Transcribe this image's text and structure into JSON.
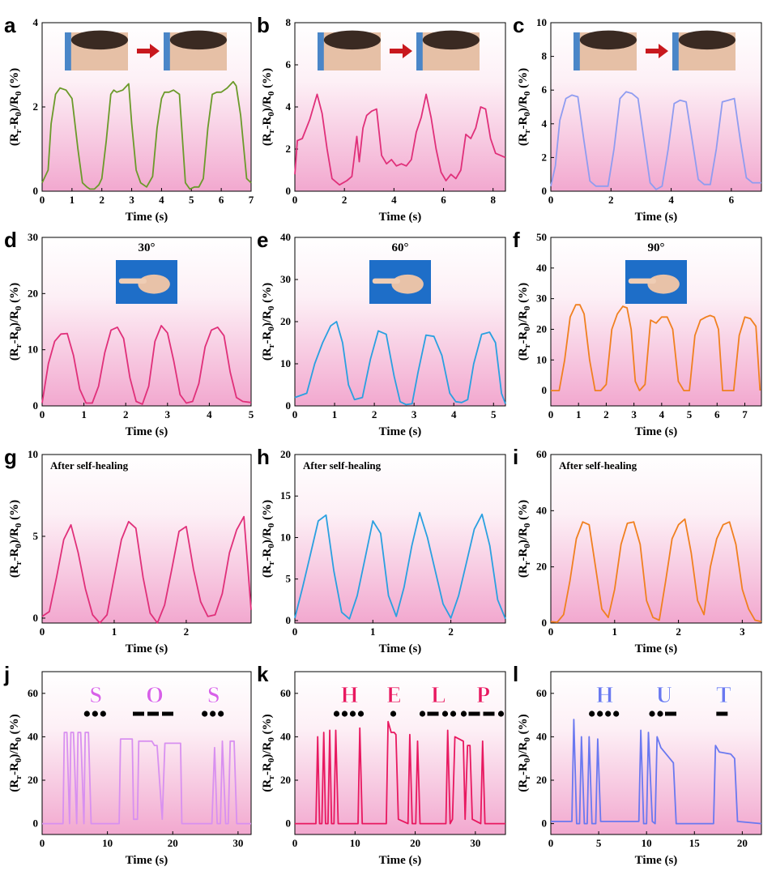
{
  "figure": {
    "ylabel": "(R_r-R_0)/R_0 (%)",
    "xlabel": "Time (s)"
  },
  "chart_data": [
    {
      "id": "a",
      "type": "line",
      "color": "#6b9a2a",
      "xlim": [
        0,
        7
      ],
      "ylim": [
        0,
        4
      ],
      "xticks": [
        0,
        1,
        2,
        3,
        4,
        5,
        6,
        7
      ],
      "yticks": [
        0,
        2,
        4
      ],
      "xlabel": "Time (s)",
      "ylabel": "(R_r-R_0)/R_0 (%)",
      "annotation": "",
      "photos": 2,
      "x": [
        0,
        0.2,
        0.3,
        0.45,
        0.6,
        0.8,
        1.0,
        1.2,
        1.35,
        1.5,
        1.6,
        1.75,
        1.9,
        2.0,
        2.15,
        2.3,
        2.4,
        2.5,
        2.7,
        2.9,
        3.0,
        3.15,
        3.3,
        3.5,
        3.7,
        3.85,
        4.0,
        4.1,
        4.25,
        4.4,
        4.6,
        4.8,
        4.95,
        5.1,
        5.25,
        5.4,
        5.55,
        5.7,
        5.85,
        6.0,
        6.2,
        6.4,
        6.5,
        6.65,
        6.85,
        7.0
      ],
      "y": [
        0.2,
        0.5,
        1.6,
        2.3,
        2.45,
        2.4,
        2.2,
        1.0,
        0.2,
        0.1,
        0.05,
        0.05,
        0.15,
        0.3,
        1.2,
        2.3,
        2.4,
        2.35,
        2.4,
        2.55,
        1.6,
        0.5,
        0.2,
        0.1,
        0.35,
        1.5,
        2.2,
        2.35,
        2.35,
        2.4,
        2.3,
        0.2,
        0.05,
        0.1,
        0.1,
        0.3,
        1.5,
        2.3,
        2.35,
        2.35,
        2.45,
        2.6,
        2.5,
        1.8,
        0.3,
        0.2
      ]
    },
    {
      "id": "b",
      "type": "line",
      "color": "#e0307a",
      "xlim": [
        0,
        8.5
      ],
      "ylim": [
        0,
        8
      ],
      "xticks": [
        0,
        2,
        4,
        6,
        8
      ],
      "yticks": [
        0,
        2,
        4,
        6,
        8
      ],
      "xlabel": "Time (s)",
      "ylabel": "(R_r-R_0)/R_0 (%)",
      "annotation": "",
      "photos": 2,
      "x": [
        0,
        0.1,
        0.3,
        0.6,
        0.9,
        1.1,
        1.3,
        1.5,
        1.8,
        2.1,
        2.3,
        2.5,
        2.6,
        2.75,
        2.9,
        3.1,
        3.3,
        3.5,
        3.7,
        3.9,
        4.1,
        4.3,
        4.5,
        4.7,
        4.9,
        5.1,
        5.3,
        5.5,
        5.7,
        5.9,
        6.1,
        6.3,
        6.5,
        6.7,
        6.9,
        7.1,
        7.3,
        7.5,
        7.7,
        7.9,
        8.1,
        8.3,
        8.5
      ],
      "y": [
        0.8,
        2.4,
        2.5,
        3.4,
        4.6,
        3.7,
        2.0,
        0.6,
        0.3,
        0.5,
        0.7,
        2.6,
        1.4,
        3.0,
        3.6,
        3.8,
        3.9,
        1.7,
        1.3,
        1.5,
        1.2,
        1.3,
        1.2,
        1.5,
        2.8,
        3.5,
        4.6,
        3.5,
        2.0,
        0.9,
        0.5,
        0.8,
        0.6,
        1.0,
        2.7,
        2.5,
        3.0,
        4.0,
        3.9,
        2.5,
        1.8,
        1.7,
        1.6
      ]
    },
    {
      "id": "c",
      "type": "line",
      "color": "#8f9cf0",
      "xlim": [
        0,
        7
      ],
      "ylim": [
        0,
        10
      ],
      "xticks": [
        0,
        2,
        4,
        6
      ],
      "yticks": [
        0,
        2,
        4,
        6,
        8,
        10
      ],
      "xlabel": "Time (s)",
      "ylabel": "(R_r-R_0)/R_0 (%)",
      "annotation": "",
      "photos": 2,
      "x": [
        0,
        0.15,
        0.3,
        0.5,
        0.7,
        0.9,
        1.1,
        1.3,
        1.5,
        1.7,
        1.9,
        2.1,
        2.3,
        2.5,
        2.7,
        2.9,
        3.1,
        3.3,
        3.5,
        3.7,
        3.9,
        4.1,
        4.3,
        4.5,
        4.7,
        4.9,
        5.1,
        5.3,
        5.5,
        5.7,
        5.9,
        6.1,
        6.3,
        6.5,
        6.7,
        7.0
      ],
      "y": [
        0.3,
        1.5,
        4.2,
        5.5,
        5.7,
        5.6,
        3.0,
        0.6,
        0.3,
        0.3,
        0.3,
        2.5,
        5.5,
        5.9,
        5.8,
        5.5,
        3.0,
        0.5,
        0.1,
        0.3,
        2.5,
        5.2,
        5.4,
        5.3,
        3.0,
        0.7,
        0.4,
        0.4,
        2.5,
        5.3,
        5.4,
        5.5,
        3.0,
        0.8,
        0.5,
        0.5
      ]
    },
    {
      "id": "d",
      "type": "line",
      "color": "#e0307a",
      "xlim": [
        0,
        5
      ],
      "ylim": [
        0,
        30
      ],
      "xticks": [
        0,
        1,
        2,
        3,
        4,
        5
      ],
      "yticks": [
        0,
        10,
        20,
        30
      ],
      "xlabel": "Time (s)",
      "ylabel": "(R_r-R_0)/R_0 (%)",
      "annotation": "30°",
      "photos": 1,
      "x": [
        0,
        0.15,
        0.3,
        0.45,
        0.6,
        0.75,
        0.9,
        1.05,
        1.2,
        1.35,
        1.5,
        1.65,
        1.8,
        1.95,
        2.1,
        2.25,
        2.4,
        2.55,
        2.7,
        2.85,
        3.0,
        3.15,
        3.3,
        3.45,
        3.6,
        3.75,
        3.9,
        4.05,
        4.2,
        4.35,
        4.5,
        4.65,
        4.8,
        5.0
      ],
      "y": [
        0.5,
        7.5,
        11.5,
        12.8,
        12.9,
        9.0,
        3.0,
        0.5,
        0.5,
        3.5,
        9.5,
        13.5,
        14.0,
        12.0,
        5.0,
        0.8,
        0.3,
        3.5,
        11.5,
        14.3,
        13.0,
        8.0,
        2.0,
        0.5,
        0.8,
        4.0,
        10.5,
        13.5,
        14.0,
        12.5,
        6.0,
        1.5,
        0.8,
        0.6
      ]
    },
    {
      "id": "e",
      "type": "line",
      "color": "#2aa0e0",
      "xlim": [
        0,
        5.3
      ],
      "ylim": [
        0,
        40
      ],
      "xticks": [
        0,
        1,
        2,
        3,
        4,
        5
      ],
      "yticks": [
        0,
        10,
        20,
        30,
        40
      ],
      "xlabel": "Time (s)",
      "ylabel": "(R_r-R_0)/R_0 (%)",
      "annotation": "60°",
      "photos": 1,
      "x": [
        0,
        0.3,
        0.5,
        0.7,
        0.9,
        1.05,
        1.2,
        1.35,
        1.5,
        1.7,
        1.9,
        2.1,
        2.3,
        2.5,
        2.65,
        2.8,
        2.95,
        3.1,
        3.3,
        3.5,
        3.7,
        3.9,
        4.05,
        4.2,
        4.35,
        4.5,
        4.7,
        4.9,
        5.05,
        5.2,
        5.3
      ],
      "y": [
        2.0,
        3.0,
        10.0,
        15.0,
        19.0,
        20.0,
        15.0,
        5.0,
        1.5,
        2.0,
        11.0,
        17.8,
        17.0,
        7.0,
        1.0,
        0.3,
        0.5,
        8.0,
        16.8,
        16.5,
        12.0,
        3.0,
        1.0,
        0.8,
        1.5,
        10.0,
        17.0,
        17.5,
        15.0,
        3.0,
        0.5
      ]
    },
    {
      "id": "f",
      "type": "line",
      "color": "#f08020",
      "xlim": [
        0,
        7.6
      ],
      "ylim": [
        -5,
        50
      ],
      "xticks": [
        0,
        1,
        2,
        3,
        4,
        5,
        6,
        7
      ],
      "yticks": [
        0,
        10,
        20,
        30,
        40,
        50
      ],
      "xlabel": "Time (s)",
      "ylabel": "(R_r-R_0)/R_0 (%)",
      "annotation": "90°",
      "photos": 1,
      "x": [
        0,
        0.3,
        0.5,
        0.7,
        0.9,
        1.05,
        1.2,
        1.4,
        1.6,
        1.8,
        2.0,
        2.2,
        2.4,
        2.6,
        2.75,
        2.9,
        3.05,
        3.2,
        3.4,
        3.6,
        3.8,
        4.0,
        4.2,
        4.4,
        4.6,
        4.8,
        5.0,
        5.2,
        5.4,
        5.6,
        5.75,
        5.9,
        6.05,
        6.2,
        6.4,
        6.6,
        6.8,
        7.0,
        7.2,
        7.4,
        7.55
      ],
      "y": [
        0,
        0,
        10,
        24,
        28,
        28,
        25,
        10,
        0,
        0,
        2,
        20,
        25,
        27.5,
        27,
        20,
        3,
        0,
        2,
        23,
        22,
        24,
        24,
        20,
        3,
        0,
        0,
        18,
        23,
        24,
        24.5,
        24,
        20,
        0,
        0,
        0,
        18,
        24,
        23.5,
        21,
        0
      ]
    },
    {
      "id": "g",
      "type": "line",
      "color": "#e0307a",
      "xlim": [
        0,
        2.9
      ],
      "ylim": [
        -0.3,
        10
      ],
      "xticks": [
        0,
        1,
        2
      ],
      "yticks": [
        0,
        5,
        10
      ],
      "xlabel": "Time (s)",
      "ylabel": "(R_r-R_0)/R_0 (%)",
      "annotation": "After self-healing",
      "x": [
        0,
        0.1,
        0.2,
        0.3,
        0.4,
        0.5,
        0.6,
        0.7,
        0.8,
        0.9,
        1.0,
        1.1,
        1.2,
        1.3,
        1.4,
        1.5,
        1.6,
        1.7,
        1.8,
        1.9,
        2.0,
        2.1,
        2.2,
        2.3,
        2.4,
        2.5,
        2.6,
        2.7,
        2.8,
        2.9
      ],
      "y": [
        0.1,
        0.4,
        2.5,
        4.8,
        5.7,
        4.0,
        1.8,
        0.2,
        -0.3,
        0.2,
        2.5,
        4.8,
        5.9,
        5.5,
        2.5,
        0.3,
        -0.3,
        0.8,
        3.0,
        5.3,
        5.6,
        3.0,
        1.0,
        0.1,
        0.2,
        1.5,
        4.0,
        5.4,
        6.2,
        0.5
      ]
    },
    {
      "id": "h",
      "type": "line",
      "color": "#2aa0e0",
      "xlim": [
        0,
        2.7
      ],
      "ylim": [
        -0.3,
        20
      ],
      "xticks": [
        0,
        1,
        2
      ],
      "yticks": [
        0,
        5,
        10,
        15,
        20
      ],
      "xlabel": "Time (s)",
      "ylabel": "(R_r-R_0)/R_0 (%)",
      "annotation": "After self-healing",
      "x": [
        0,
        0.1,
        0.2,
        0.3,
        0.4,
        0.5,
        0.6,
        0.7,
        0.8,
        0.9,
        1.0,
        1.1,
        1.2,
        1.3,
        1.4,
        1.5,
        1.6,
        1.7,
        1.8,
        1.9,
        2.0,
        2.1,
        2.2,
        2.3,
        2.4,
        2.5,
        2.6,
        2.7
      ],
      "y": [
        0.3,
        4.0,
        8.0,
        12.0,
        12.7,
        6.0,
        1.0,
        0.2,
        3.0,
        7.5,
        12.0,
        10.5,
        3.0,
        0.5,
        4.0,
        9.0,
        13.0,
        10.0,
        6.0,
        2.0,
        0.3,
        3.0,
        7.0,
        11.0,
        12.8,
        9.0,
        2.5,
        0.2
      ]
    },
    {
      "id": "i",
      "type": "line",
      "color": "#f08020",
      "xlim": [
        0,
        3.3
      ],
      "ylim": [
        0,
        60
      ],
      "xticks": [
        0,
        1,
        2,
        3
      ],
      "yticks": [
        0,
        20,
        40,
        60
      ],
      "xlabel": "Time (s)",
      "ylabel": "(R_r-R_0)/R_0 (%)",
      "annotation": "After self-healing",
      "x": [
        0,
        0.1,
        0.2,
        0.3,
        0.4,
        0.5,
        0.6,
        0.7,
        0.8,
        0.9,
        1.0,
        1.1,
        1.2,
        1.3,
        1.4,
        1.5,
        1.6,
        1.7,
        1.8,
        1.9,
        2.0,
        2.1,
        2.2,
        2.3,
        2.4,
        2.5,
        2.6,
        2.7,
        2.8,
        2.9,
        3.0,
        3.1,
        3.2,
        3.3
      ],
      "y": [
        0.5,
        0.3,
        3.0,
        15.0,
        30.0,
        36.0,
        35.0,
        20.0,
        5.0,
        2.0,
        12.0,
        28.0,
        35.5,
        36.0,
        28.0,
        8.0,
        2.0,
        1.0,
        15.0,
        30.0,
        35.0,
        37.0,
        25.0,
        8.0,
        3.0,
        20.0,
        30.0,
        35.0,
        36.0,
        28.0,
        12.0,
        5.0,
        1.0,
        0.5
      ]
    },
    {
      "id": "j",
      "type": "line",
      "color": "#d890f0",
      "xlim": [
        0,
        32
      ],
      "ylim": [
        -5,
        70
      ],
      "xticks": [
        0,
        10,
        20,
        30
      ],
      "yticks": [
        0,
        20,
        40,
        60
      ],
      "xlabel": "Time (s)",
      "ylabel": "(R_r-R_0)/R_0 (%)",
      "annotation": "",
      "morse": [
        {
          "letter": "S",
          "code": "...",
          "color": "#d860e8"
        },
        {
          "letter": "O",
          "code": "---",
          "color": "#d860e8"
        },
        {
          "letter": "S",
          "code": "...",
          "color": "#d860e8"
        }
      ],
      "x": [
        0,
        3.2,
        3.4,
        3.8,
        4.2,
        4.4,
        4.8,
        5.3,
        5.5,
        5.9,
        6.4,
        6.6,
        7.1,
        7.5,
        11.8,
        12,
        12.5,
        13.8,
        14,
        14.6,
        14.8,
        16.8,
        17.2,
        17.6,
        18.4,
        18.8,
        21.2,
        21.4,
        26,
        26.4,
        26.8,
        27.3,
        27.6,
        28.1,
        28.5,
        28.8,
        29.4,
        29.8,
        32
      ],
      "y": [
        0,
        0,
        42,
        42,
        0,
        42,
        42,
        0,
        42,
        42,
        0,
        42,
        42,
        0,
        0,
        39,
        39,
        39,
        2,
        2,
        38,
        38,
        36,
        36,
        2,
        37,
        37,
        0,
        0,
        35,
        0,
        0,
        38,
        0,
        0,
        38,
        38,
        0,
        0
      ]
    },
    {
      "id": "k",
      "type": "line",
      "color": "#e81860",
      "xlim": [
        0,
        35
      ],
      "ylim": [
        -5,
        70
      ],
      "xticks": [
        0,
        10,
        20,
        30
      ],
      "yticks": [
        0,
        20,
        40,
        60
      ],
      "xlabel": "Time (s)",
      "ylabel": "(R_r-R_0)/R_0 (%)",
      "annotation": "",
      "morse": [
        {
          "letter": "H",
          "code": "....",
          "color": "#e81860"
        },
        {
          "letter": "E",
          "code": ".",
          "color": "#e81860"
        },
        {
          "letter": "L",
          "code": ".-..",
          "color": "#e81860"
        },
        {
          "letter": "P",
          "code": ".--.",
          "color": "#e81860"
        }
      ],
      "x": [
        0,
        3.5,
        3.8,
        4.1,
        4.5,
        4.8,
        5.1,
        5.5,
        5.8,
        6.1,
        6.5,
        6.8,
        7.2,
        10.5,
        10.8,
        11.2,
        15.2,
        15.5,
        16.0,
        16.5,
        16.8,
        17.2,
        18.8,
        19.1,
        19.5,
        20.1,
        20.4,
        20.8,
        25.1,
        25.4,
        25.8,
        26.2,
        26.6,
        28,
        28.3,
        28.7,
        29.1,
        29.5,
        30.9,
        31.2,
        31.6,
        35
      ],
      "y": [
        0,
        0,
        40,
        0,
        0,
        42,
        0,
        0,
        43,
        0,
        0,
        43,
        0,
        0,
        44,
        0,
        0,
        47,
        42,
        42,
        41,
        2,
        0,
        41,
        0,
        0,
        38,
        0,
        0,
        43,
        0,
        2,
        40,
        38,
        2,
        36,
        36,
        2,
        0,
        38,
        0,
        0
      ]
    },
    {
      "id": "l",
      "type": "line",
      "color": "#6a78f0",
      "xlim": [
        0,
        22
      ],
      "ylim": [
        -5,
        70
      ],
      "xticks": [
        0,
        5,
        10,
        15,
        20
      ],
      "yticks": [
        0,
        20,
        40,
        60
      ],
      "xlabel": "Time (s)",
      "ylabel": "(R_r-R_0)/R_0 (%)",
      "annotation": "",
      "morse": [
        {
          "letter": "H",
          "code": "....",
          "color": "#6a78f0"
        },
        {
          "letter": "U",
          "code": "..-",
          "color": "#6a78f0"
        },
        {
          "letter": "T",
          "code": "-",
          "color": "#6a78f0"
        }
      ],
      "x": [
        0,
        2.2,
        2.4,
        2.7,
        3.0,
        3.2,
        3.5,
        3.8,
        4.0,
        4.3,
        4.7,
        4.9,
        5.2,
        9.2,
        9.4,
        9.7,
        10.0,
        10.2,
        10.6,
        10.9,
        11.1,
        11.5,
        12.8,
        13.1,
        17.0,
        17.2,
        17.6,
        18.8,
        19.2,
        19.5,
        22
      ],
      "y": [
        1,
        1,
        48,
        0,
        0,
        40,
        0,
        0,
        40,
        0,
        0,
        39,
        1,
        1,
        43,
        0,
        0,
        42,
        1,
        0,
        40,
        35,
        28,
        0,
        0,
        36,
        33,
        32,
        30,
        1,
        0
      ]
    }
  ]
}
